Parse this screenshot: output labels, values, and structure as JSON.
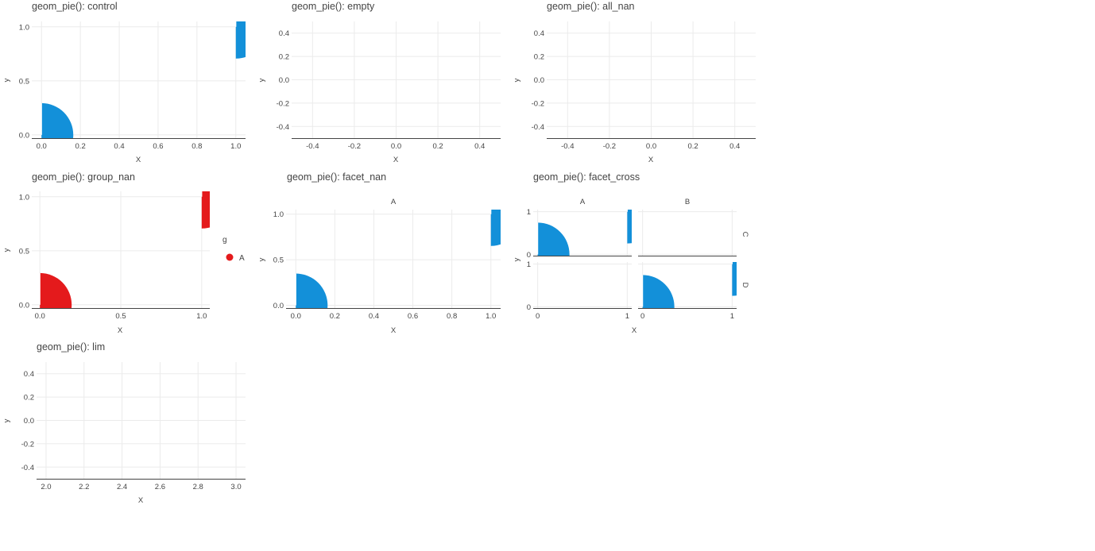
{
  "chart_data": [
    {
      "id": "control",
      "type": "pie",
      "title": "geom_pie(): control",
      "xlabel": "X",
      "ylabel": "y",
      "xlim": [
        -0.05,
        1.05
      ],
      "ylim": [
        -0.03,
        1.05
      ],
      "xticks": [
        0,
        0.2,
        0.4,
        0.6,
        0.8,
        1
      ],
      "xtick_labels": [
        "0.0",
        "0.2",
        "0.4",
        "0.6",
        "0.8",
        "1.0"
      ],
      "yticks": [
        0,
        0.5,
        1
      ],
      "ytick_labels": [
        "0.0",
        "0.5",
        "1.0"
      ],
      "color": "#1390d9",
      "pies": [
        {
          "x": 0,
          "y": 0
        },
        {
          "x": 1,
          "y": 1
        }
      ]
    },
    {
      "id": "empty",
      "type": "pie",
      "title": "geom_pie(): empty",
      "xlabel": "X",
      "ylabel": "y",
      "xlim": [
        -0.5,
        0.5
      ],
      "ylim": [
        -0.5,
        0.5
      ],
      "xticks": [
        -0.4,
        -0.2,
        0,
        0.2,
        0.4
      ],
      "xtick_labels": [
        "-0.4",
        "-0.2",
        "0.0",
        "0.2",
        "0.4"
      ],
      "yticks": [
        -0.4,
        -0.2,
        0,
        0.2,
        0.4
      ],
      "ytick_labels": [
        "-0.4",
        "-0.2",
        "0.0",
        "0.2",
        "0.4"
      ],
      "pies": []
    },
    {
      "id": "all_nan",
      "type": "pie",
      "title": "geom_pie(): all_nan",
      "xlabel": "X",
      "ylabel": "y",
      "xlim": [
        -0.5,
        0.5
      ],
      "ylim": [
        -0.5,
        0.5
      ],
      "xticks": [
        -0.4,
        -0.2,
        0,
        0.2,
        0.4
      ],
      "xtick_labels": [
        "-0.4",
        "-0.2",
        "0.0",
        "0.2",
        "0.4"
      ],
      "yticks": [
        -0.4,
        -0.2,
        0,
        0.2,
        0.4
      ],
      "ytick_labels": [
        "-0.4",
        "-0.2",
        "0.0",
        "0.2",
        "0.4"
      ],
      "pies": []
    },
    {
      "id": "group_nan",
      "type": "pie",
      "title": "geom_pie(): group_nan",
      "xlabel": "X",
      "ylabel": "y",
      "xlim": [
        -0.05,
        1.05
      ],
      "ylim": [
        -0.03,
        1.05
      ],
      "xticks": [
        0,
        0.5,
        1
      ],
      "xtick_labels": [
        "0.0",
        "0.5",
        "1.0"
      ],
      "yticks": [
        0,
        0.5,
        1
      ],
      "ytick_labels": [
        "0.0",
        "0.5",
        "1.0"
      ],
      "color": "#e41a1c",
      "pies": [
        {
          "x": 0,
          "y": 0
        },
        {
          "x": 1,
          "y": 1
        }
      ],
      "legend": {
        "title": "g",
        "entries": [
          {
            "label": "A",
            "color": "#e41a1c"
          }
        ]
      }
    },
    {
      "id": "facet_nan",
      "type": "pie",
      "title": "geom_pie(): facet_nan",
      "xlabel": "X",
      "ylabel": "y",
      "strip": "A",
      "xlim": [
        -0.05,
        1.05
      ],
      "ylim": [
        -0.03,
        1.05
      ],
      "xticks": [
        0,
        0.2,
        0.4,
        0.6,
        0.8,
        1
      ],
      "xtick_labels": [
        "0.0",
        "0.2",
        "0.4",
        "0.6",
        "0.8",
        "1.0"
      ],
      "yticks": [
        0,
        0.5,
        1
      ],
      "ytick_labels": [
        "0.0",
        "0.5",
        "1.0"
      ],
      "color": "#1390d9",
      "pies": [
        {
          "x": 0,
          "y": 0
        },
        {
          "x": 1,
          "y": 1
        }
      ]
    },
    {
      "id": "facet_cross",
      "type": "pie",
      "title": "geom_pie(): facet_cross",
      "xlabel": "X",
      "ylabel": "y",
      "col_strips": [
        "A",
        "B"
      ],
      "row_strips": [
        "C",
        "D"
      ],
      "xlim": [
        -0.05,
        1.05
      ],
      "ylim": [
        -0.03,
        1.05
      ],
      "xticks": [
        0,
        1
      ],
      "xtick_labels": [
        "0",
        "1"
      ],
      "yticks": [
        0,
        1
      ],
      "ytick_labels": [
        "0",
        "1"
      ],
      "color": "#1390d9",
      "panels": [
        {
          "row": 0,
          "col": 0,
          "pies": [
            {
              "x": 0,
              "y": 0
            },
            {
              "x": 1,
              "y": 1
            }
          ]
        },
        {
          "row": 0,
          "col": 1,
          "pies": []
        },
        {
          "row": 1,
          "col": 0,
          "pies": []
        },
        {
          "row": 1,
          "col": 1,
          "pies": [
            {
              "x": 0,
              "y": 0
            },
            {
              "x": 1,
              "y": 1
            }
          ]
        }
      ]
    },
    {
      "id": "lim",
      "type": "pie",
      "title": "geom_pie(): lim",
      "xlabel": "X",
      "ylabel": "y",
      "xlim": [
        1.95,
        3.05
      ],
      "ylim": [
        -0.5,
        0.5
      ],
      "xticks": [
        2,
        2.2,
        2.4,
        2.6,
        2.8,
        3
      ],
      "xtick_labels": [
        "2.0",
        "2.2",
        "2.4",
        "2.6",
        "2.8",
        "3.0"
      ],
      "yticks": [
        -0.4,
        -0.2,
        0,
        0.2,
        0.4
      ],
      "ytick_labels": [
        "-0.4",
        "-0.2",
        "0.0",
        "0.2",
        "0.4"
      ],
      "pies": []
    }
  ]
}
